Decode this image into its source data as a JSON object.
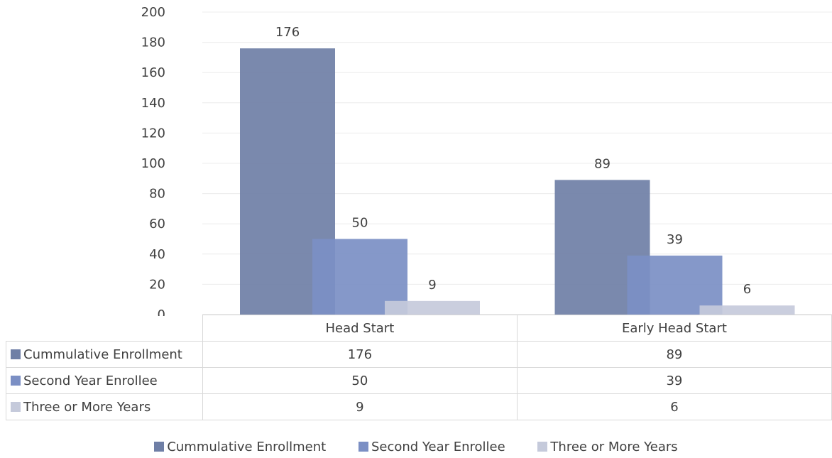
{
  "chart_data": {
    "type": "bar",
    "categories": [
      "Head Start",
      "Early Head Start"
    ],
    "series": [
      {
        "name": "Cummulative Enrollment",
        "values": [
          176,
          89
        ],
        "color": "#6f7fa6"
      },
      {
        "name": "Second Year Enrollee",
        "values": [
          50,
          39
        ],
        "color": "#7b8fc4"
      },
      {
        "name": "Three or More Years",
        "values": [
          9,
          6
        ],
        "color": "#c5cadb"
      }
    ],
    "ylim": [
      0,
      200
    ],
    "yticks": [
      0,
      20,
      40,
      60,
      80,
      100,
      120,
      140,
      160,
      180,
      200
    ],
    "grid": true,
    "legend_position": "bottom",
    "data_table": true,
    "title": "",
    "xlabel": "",
    "ylabel": ""
  }
}
